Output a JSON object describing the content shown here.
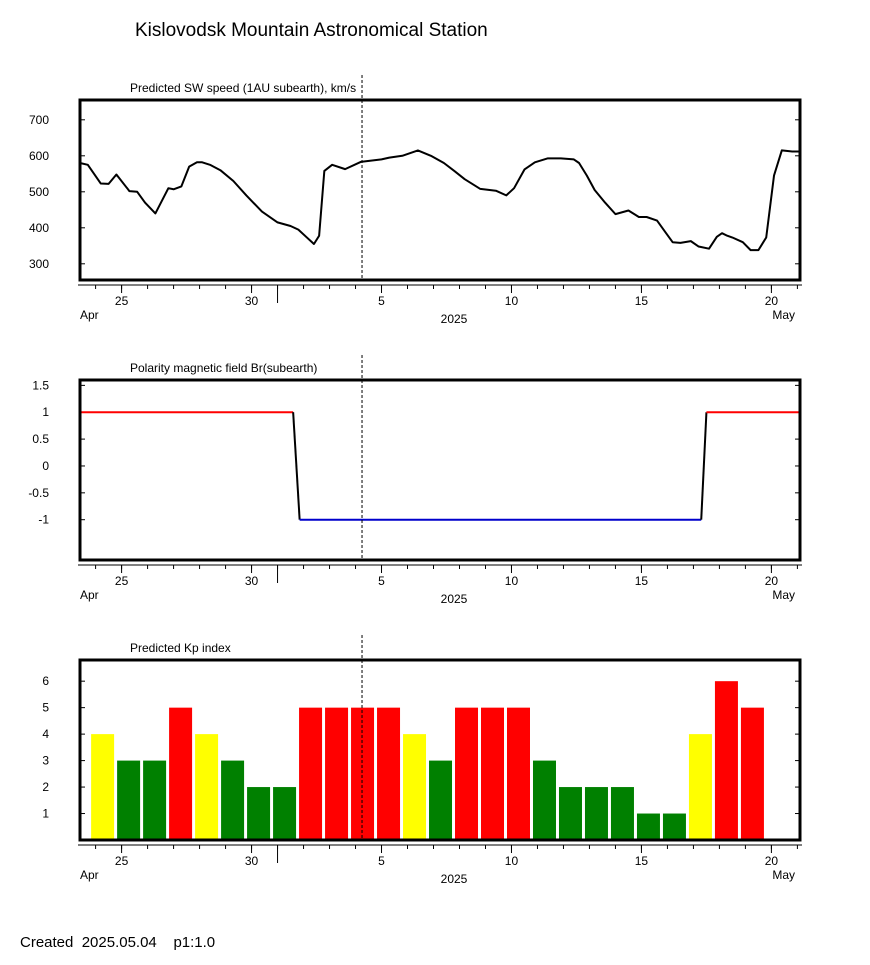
{
  "title": "Kislovodsk Mountain Astronomical Station",
  "footer": "Created  2025.05.04    p1:1.0",
  "colors": {
    "frame": "#000000",
    "positive": "#ff0000",
    "negative": "#0000cc",
    "kp_quiet": "#008000",
    "kp_active": "#ffff00",
    "kp_storm": "#ff0000"
  },
  "x_axis": {
    "day_range": [
      23.4,
      51.1
    ],
    "ticks": [
      {
        "day": 25,
        "label": "25"
      },
      {
        "day": 30,
        "label": "30"
      },
      {
        "day": 35,
        "label": "5"
      },
      {
        "day": 40,
        "label": "10"
      },
      {
        "day": 45,
        "label": "15"
      },
      {
        "day": 50,
        "label": "20"
      }
    ],
    "month_labels": [
      "Apr",
      "May"
    ],
    "year_label": "2025",
    "month_boundary_day": 31,
    "marker_day": 34.25
  },
  "chart_data": [
    {
      "type": "line",
      "title": "Predicted SW speed (1AU subearth), km/s",
      "ylim": [
        255,
        755
      ],
      "yticks": [
        300,
        400,
        500,
        600,
        700
      ],
      "x": [
        23.4,
        23.7,
        24.2,
        24.5,
        24.8,
        25.3,
        25.6,
        25.9,
        26.3,
        26.8,
        27.0,
        27.3,
        27.6,
        27.9,
        28.1,
        28.4,
        28.8,
        29.3,
        29.8,
        30.4,
        31.0,
        31.5,
        31.8,
        32.1,
        32.4,
        32.6,
        32.8,
        33.1,
        33.6,
        34.2,
        35.0,
        35.3,
        35.8,
        36.4,
        36.9,
        37.4,
        37.8,
        38.2,
        38.8,
        39.4,
        39.8,
        40.1,
        40.5,
        40.9,
        41.4,
        41.9,
        42.4,
        42.6,
        42.9,
        43.2,
        43.6,
        44.0,
        44.5,
        44.9,
        45.2,
        45.6,
        45.9,
        46.2,
        46.5,
        46.9,
        47.2,
        47.6,
        47.9,
        48.1,
        48.3,
        48.5,
        48.9,
        49.2,
        49.5,
        49.8,
        50.1,
        50.4,
        50.8,
        51.1
      ],
      "y": [
        580,
        575,
        523,
        522,
        548,
        502,
        500,
        470,
        440,
        510,
        507,
        515,
        570,
        582,
        582,
        575,
        560,
        530,
        490,
        445,
        415,
        405,
        395,
        375,
        355,
        378,
        558,
        575,
        563,
        583,
        590,
        595,
        600,
        615,
        600,
        580,
        558,
        535,
        508,
        503,
        490,
        510,
        562,
        582,
        593,
        593,
        590,
        580,
        545,
        505,
        470,
        438,
        448,
        430,
        430,
        420,
        390,
        360,
        358,
        363,
        348,
        342,
        375,
        385,
        378,
        373,
        360,
        338,
        338,
        373,
        545,
        615,
        612,
        612
      ]
    },
    {
      "type": "line",
      "title": "Polarity magnetic field  Br(subearth)",
      "ylim": [
        -1.75,
        1.6
      ],
      "yticks": [
        1.5,
        1,
        0.5,
        0,
        -0.5,
        -1
      ],
      "ytick_labels": [
        "1.5",
        "1",
        "0.5",
        "0",
        "-0.5",
        "-1"
      ],
      "series": [
        {
          "x": [
            23.4,
            31.6
          ],
          "y": [
            1,
            1
          ],
          "color": "#ff0000"
        },
        {
          "x": [
            31.6,
            31.85
          ],
          "y": [
            1,
            -1
          ],
          "color": "#000000"
        },
        {
          "x": [
            31.85,
            47.3
          ],
          "y": [
            -1,
            -1
          ],
          "color": "#0000cc"
        },
        {
          "x": [
            47.3,
            47.5
          ],
          "y": [
            -1,
            1
          ],
          "color": "#000000"
        },
        {
          "x": [
            47.5,
            51.1
          ],
          "y": [
            1,
            1
          ],
          "color": "#ff0000"
        }
      ]
    },
    {
      "type": "bar",
      "title": "Predicted Kp index",
      "ylim": [
        0,
        6.8
      ],
      "yticks": [
        1,
        2,
        3,
        4,
        5,
        6
      ],
      "x": [
        24.27,
        25.27,
        26.27,
        27.27,
        28.27,
        29.27,
        30.27,
        31.27,
        32.27,
        33.27,
        34.27,
        35.27,
        36.27,
        37.27,
        38.27,
        39.27,
        40.27,
        41.27,
        42.27,
        43.27,
        44.27,
        45.27,
        46.27,
        47.27,
        48.27,
        49.27
      ],
      "values": [
        4,
        3,
        3,
        5,
        4,
        3,
        2,
        2,
        5,
        5,
        5,
        5,
        4,
        3,
        5,
        5,
        5,
        3,
        2,
        2,
        2,
        1,
        1,
        4,
        6,
        5
      ],
      "colors": [
        "#ffff00",
        "#008000",
        "#008000",
        "#ff0000",
        "#ffff00",
        "#008000",
        "#008000",
        "#008000",
        "#ff0000",
        "#ff0000",
        "#ff0000",
        "#ff0000",
        "#ffff00",
        "#008000",
        "#ff0000",
        "#ff0000",
        "#ff0000",
        "#008000",
        "#008000",
        "#008000",
        "#008000",
        "#008000",
        "#008000",
        "#ffff00",
        "#ff0000",
        "#ff0000"
      ]
    }
  ]
}
